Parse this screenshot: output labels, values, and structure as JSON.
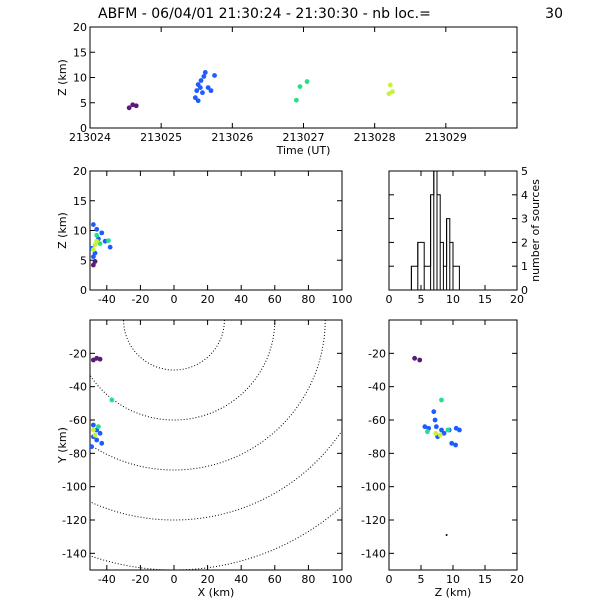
{
  "header": {
    "title": "ABFM - 06/04/01 21:30:24 - 21:30:30 - nb loc.=",
    "count": "30"
  },
  "chart_data": [
    {
      "type": "scatter",
      "panel": "time-altitude",
      "xlabel": "Time (UT)",
      "ylabel": "Z (km)",
      "xlim": [
        213024,
        213030
      ],
      "ylim": [
        0,
        20
      ],
      "xticks": [
        "213024",
        "213025",
        "213026",
        "213027",
        "213028",
        "213029"
      ],
      "yticks": [
        "0",
        "5",
        "10",
        "15",
        "20"
      ],
      "points": [
        {
          "x": 213024.55,
          "y": 4.0,
          "c": "#5a1a78"
        },
        {
          "x": 213024.6,
          "y": 4.6,
          "c": "#5a1a78"
        },
        {
          "x": 213024.65,
          "y": 4.4,
          "c": "#5a1a78"
        },
        {
          "x": 213025.48,
          "y": 6.0,
          "c": "#1f5cff"
        },
        {
          "x": 213025.52,
          "y": 5.4,
          "c": "#1f5cff"
        },
        {
          "x": 213025.5,
          "y": 7.4,
          "c": "#1f5cff"
        },
        {
          "x": 213025.55,
          "y": 8.0,
          "c": "#1f5cff"
        },
        {
          "x": 213025.52,
          "y": 8.6,
          "c": "#1f5cff"
        },
        {
          "x": 213025.56,
          "y": 9.4,
          "c": "#1f5cff"
        },
        {
          "x": 213025.6,
          "y": 10.2,
          "c": "#1f5cff"
        },
        {
          "x": 213025.62,
          "y": 11.0,
          "c": "#1f5cff"
        },
        {
          "x": 213025.66,
          "y": 8.0,
          "c": "#1f5cff"
        },
        {
          "x": 213025.7,
          "y": 7.4,
          "c": "#1f5cff"
        },
        {
          "x": 213025.75,
          "y": 10.4,
          "c": "#1f5cff"
        },
        {
          "x": 213025.58,
          "y": 7.0,
          "c": "#1f5cff"
        },
        {
          "x": 213026.9,
          "y": 5.5,
          "c": "#25e08a"
        },
        {
          "x": 213026.95,
          "y": 8.2,
          "c": "#25e08a"
        },
        {
          "x": 213027.05,
          "y": 9.2,
          "c": "#25e08a"
        },
        {
          "x": 213028.2,
          "y": 6.8,
          "c": "#c8f23a"
        },
        {
          "x": 213028.25,
          "y": 7.2,
          "c": "#c8f23a"
        },
        {
          "x": 213028.22,
          "y": 8.5,
          "c": "#c8f23a"
        }
      ]
    },
    {
      "type": "scatter",
      "panel": "x-altitude",
      "ylabel": "Z (km)",
      "xlim": [
        -50,
        100
      ],
      "ylim": [
        0,
        20
      ],
      "xticks": [
        "-40",
        "-20",
        "0",
        "20",
        "40",
        "60",
        "80",
        "100"
      ],
      "yticks": [
        "0",
        "5",
        "10",
        "15",
        "20"
      ],
      "points": [
        {
          "x": -48,
          "y": 4.2,
          "c": "#5a1a78"
        },
        {
          "x": -47,
          "y": 4.8,
          "c": "#5a1a78"
        },
        {
          "x": -48,
          "y": 11.0,
          "c": "#1f5cff"
        },
        {
          "x": -46,
          "y": 10.2,
          "c": "#1f5cff"
        },
        {
          "x": -43,
          "y": 9.6,
          "c": "#1f5cff"
        },
        {
          "x": -45,
          "y": 8.6,
          "c": "#1f5cff"
        },
        {
          "x": -41,
          "y": 8.2,
          "c": "#1f5cff"
        },
        {
          "x": -38,
          "y": 7.2,
          "c": "#1f5cff"
        },
        {
          "x": -49,
          "y": 7.0,
          "c": "#1f5cff"
        },
        {
          "x": -47,
          "y": 6.2,
          "c": "#1f5cff"
        },
        {
          "x": -48,
          "y": 5.6,
          "c": "#1f5cff"
        },
        {
          "x": -44,
          "y": 7.8,
          "c": "#25e08a"
        },
        {
          "x": -39,
          "y": 8.3,
          "c": "#25e08a"
        },
        {
          "x": -46,
          "y": 9.2,
          "c": "#25e08a"
        },
        {
          "x": -48,
          "y": 6.8,
          "c": "#c8f23a"
        },
        {
          "x": -47,
          "y": 7.6,
          "c": "#c8f23a"
        },
        {
          "x": -46,
          "y": 8.2,
          "c": "#c8f23a"
        }
      ]
    },
    {
      "type": "bar",
      "panel": "histogram",
      "ylabel": "number of sources",
      "xlim": [
        0,
        20
      ],
      "ylim": [
        0,
        5
      ],
      "xticks": [
        "0",
        "5",
        "10",
        "15",
        "20"
      ],
      "yticks": [
        "0",
        "1",
        "2",
        "3",
        "4",
        "5"
      ],
      "bins": [
        {
          "from": 3.5,
          "to": 4.5,
          "value": 1
        },
        {
          "from": 4.5,
          "to": 5.5,
          "value": 2
        },
        {
          "from": 5.5,
          "to": 6.5,
          "value": 1
        },
        {
          "from": 6.5,
          "to": 7.0,
          "value": 4
        },
        {
          "from": 7.0,
          "to": 7.5,
          "value": 5
        },
        {
          "from": 7.5,
          "to": 8.0,
          "value": 4
        },
        {
          "from": 8.0,
          "to": 8.5,
          "value": 2
        },
        {
          "from": 8.5,
          "to": 9.0,
          "value": 1
        },
        {
          "from": 9.0,
          "to": 9.5,
          "value": 3
        },
        {
          "from": 9.5,
          "to": 10.0,
          "value": 2
        },
        {
          "from": 10.0,
          "to": 11.0,
          "value": 1
        }
      ]
    },
    {
      "type": "scatter",
      "panel": "plan-view",
      "xlabel": "X (km)",
      "ylabel": "Y (km)",
      "xlim": [
        -50,
        100
      ],
      "ylim": [
        -150,
        0
      ],
      "xticks": [
        "-40",
        "-20",
        "0",
        "20",
        "40",
        "60",
        "80",
        "100"
      ],
      "yticks": [
        "-20",
        "-40",
        "-60",
        "-80",
        "-100",
        "-120",
        "-140"
      ],
      "range_rings_km": [
        30,
        60,
        90,
        120,
        150
      ],
      "ring_center": [
        0,
        0
      ],
      "points": [
        {
          "x": -48,
          "y": -24,
          "c": "#5a1a78"
        },
        {
          "x": -46,
          "y": -23,
          "c": "#5a1a78"
        },
        {
          "x": -44,
          "y": -23.5,
          "c": "#5a1a78"
        },
        {
          "x": -37,
          "y": -48,
          "c": "#25e08a"
        },
        {
          "x": -48,
          "y": -63,
          "c": "#1f5cff"
        },
        {
          "x": -46,
          "y": -66,
          "c": "#1f5cff"
        },
        {
          "x": -44,
          "y": -68,
          "c": "#1f5cff"
        },
        {
          "x": -43,
          "y": -74,
          "c": "#1f5cff"
        },
        {
          "x": -48,
          "y": -70,
          "c": "#1f5cff"
        },
        {
          "x": -46,
          "y": -72,
          "c": "#1f5cff"
        },
        {
          "x": -49,
          "y": -76,
          "c": "#1f5cff"
        },
        {
          "x": -48,
          "y": -66,
          "c": "#c8f23a"
        },
        {
          "x": -47,
          "y": -69,
          "c": "#c8f23a"
        },
        {
          "x": -45,
          "y": -64,
          "c": "#25e08a"
        }
      ]
    },
    {
      "type": "scatter",
      "panel": "z-y",
      "xlabel": "Z (km)",
      "xlim": [
        0,
        20
      ],
      "ylim": [
        -150,
        0
      ],
      "xticks": [
        "0",
        "5",
        "10",
        "15",
        "20"
      ],
      "yticks": [
        "-20",
        "-40",
        "-60",
        "-80",
        "-100",
        "-120",
        "-140"
      ],
      "points": [
        {
          "x": 4.0,
          "y": -23,
          "c": "#5a1a78"
        },
        {
          "x": 4.8,
          "y": -24,
          "c": "#5a1a78"
        },
        {
          "x": 8.2,
          "y": -48,
          "c": "#25e08a"
        },
        {
          "x": 7.0,
          "y": -55,
          "c": "#1f5cff"
        },
        {
          "x": 7.2,
          "y": -60,
          "c": "#1f5cff"
        },
        {
          "x": 5.6,
          "y": -64,
          "c": "#1f5cff"
        },
        {
          "x": 6.2,
          "y": -65,
          "c": "#1f5cff"
        },
        {
          "x": 7.4,
          "y": -64,
          "c": "#1f5cff"
        },
        {
          "x": 8.2,
          "y": -66,
          "c": "#1f5cff"
        },
        {
          "x": 8.6,
          "y": -68,
          "c": "#1f5cff"
        },
        {
          "x": 9.4,
          "y": -66,
          "c": "#1f5cff"
        },
        {
          "x": 10.5,
          "y": -65,
          "c": "#1f5cff"
        },
        {
          "x": 11.0,
          "y": -66,
          "c": "#1f5cff"
        },
        {
          "x": 7.6,
          "y": -70,
          "c": "#1f5cff"
        },
        {
          "x": 9.8,
          "y": -74,
          "c": "#1f5cff"
        },
        {
          "x": 10.4,
          "y": -75,
          "c": "#1f5cff"
        },
        {
          "x": 6.0,
          "y": -67,
          "c": "#25e08a"
        },
        {
          "x": 9.2,
          "y": -66,
          "c": "#25e08a"
        },
        {
          "x": 8.0,
          "y": -69,
          "c": "#c8f23a"
        },
        {
          "x": 7.3,
          "y": -68,
          "c": "#c8f23a"
        },
        {
          "x": 9.0,
          "y": -129,
          "c": "#000000"
        }
      ]
    }
  ]
}
